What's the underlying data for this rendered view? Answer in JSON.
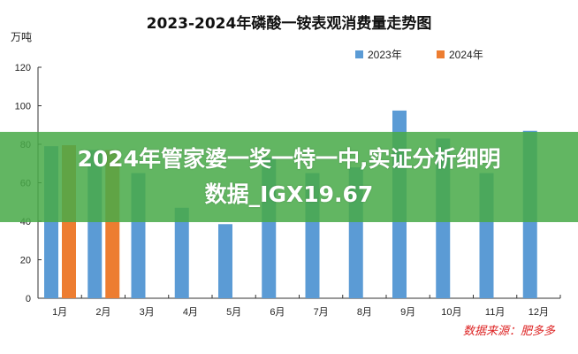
{
  "chart_data": {
    "type": "bar",
    "title": "2023-2024年磷酸一铵表观消费量走势图",
    "ylabel": "万吨",
    "xlabel": "",
    "ylim": [
      0,
      120
    ],
    "yticks": [
      0,
      20,
      40,
      60,
      80,
      100,
      120
    ],
    "categories": [
      "1月",
      "2月",
      "3月",
      "4月",
      "5月",
      "6月",
      "7月",
      "8月",
      "9月",
      "10月",
      "11月",
      "12月"
    ],
    "series": [
      {
        "name": "2023年",
        "color": "#5b9bd5",
        "values": [
          79,
          77,
          65,
          47,
          38.5,
          73,
          65,
          68,
          97.5,
          83,
          65,
          87
        ]
      },
      {
        "name": "2024年",
        "color": "#ed7d31",
        "values": [
          79.5,
          77,
          null,
          null,
          null,
          null,
          null,
          null,
          null,
          null,
          null,
          null
        ]
      }
    ],
    "legend": "top-right",
    "grid": false,
    "source": "数据来源：肥多多"
  },
  "overlay": {
    "line1": "2024年管家婆一奖一特一中,实证分析细明",
    "line2": "数据_IGX19.67",
    "color": "#48aa48"
  }
}
